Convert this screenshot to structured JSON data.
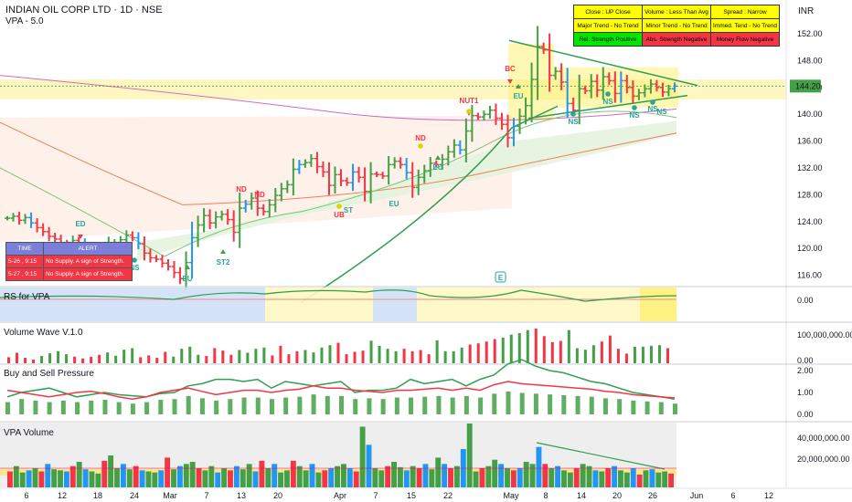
{
  "header": {
    "title": "INDIAN OIL CORP LTD · 1D · NSE",
    "subtitle": "VPA - 5.0",
    "currency": "INR"
  },
  "status_table": [
    [
      {
        "text": "Close : UP Close",
        "bg": "#ffff00"
      },
      {
        "text": "Volume : Less Than Avg",
        "bg": "#ffff00"
      },
      {
        "text": "Spread : Narrow",
        "bg": "#ffff00"
      }
    ],
    [
      {
        "text": "Major Trend - No Trend",
        "bg": "#ffff00"
      },
      {
        "text": "Minor Trend - No Trend",
        "bg": "#ffff00"
      },
      {
        "text": "Immed. Tend - No Trend",
        "bg": "#ffff00"
      }
    ],
    [
      {
        "text": "Rel. Strength Positive",
        "bg": "#00e600"
      },
      {
        "text": "Abs. Strength Negative",
        "bg": "#f23645"
      },
      {
        "text": "Money Flow Negative",
        "bg": "#f23645"
      }
    ]
  ],
  "alert_table": {
    "headers": [
      "TIME",
      "ALERT"
    ],
    "rows": [
      [
        "5-26 , 9:15",
        "No Supply. A sign of Strength."
      ],
      [
        "5-27 , 9:15",
        "No Supply. A sign of Strength."
      ]
    ]
  },
  "panes": {
    "rs": "RS for VPA",
    "volume_wave": "Volume Wave V.1.0",
    "pressure": "Buy and Sell Pressure",
    "vpa_volume": "VPA Volume"
  },
  "price_axis": {
    "ticks": [
      "152.00",
      "148.00",
      "144.00",
      "140.00",
      "136.00",
      "132.00",
      "128.00",
      "124.00",
      "120.00",
      "116.00"
    ],
    "last_price": "144.20"
  },
  "rs_axis": [
    "0.00"
  ],
  "vw_axis": [
    "100,000,000.00",
    "0.00"
  ],
  "bsp_axis": [
    "2.00",
    "1.00",
    "0.00"
  ],
  "vpa_axis": [
    "40,000,000.00",
    "20,000,000.00"
  ],
  "x_axis": [
    "6",
    "12",
    "18",
    "24",
    "Mar",
    "7",
    "13",
    "20",
    "Apr",
    "7",
    "15",
    "22",
    "May",
    "8",
    "14",
    "20",
    "26",
    "Jun",
    "6",
    "12"
  ],
  "annotations": [
    {
      "text": "ED",
      "color": "#26a69a"
    },
    {
      "text": "NS",
      "color": "#26a69a"
    },
    {
      "text": "EU",
      "color": "#26a69a"
    },
    {
      "text": "ST2",
      "color": "#26a69a"
    },
    {
      "text": "ND",
      "color": "#f23645"
    },
    {
      "text": "ND",
      "color": "#f23645"
    },
    {
      "text": "ST",
      "color": "#26a69a"
    },
    {
      "text": "UB",
      "color": "#f23645"
    },
    {
      "text": "EU",
      "color": "#26a69a"
    },
    {
      "text": "ND",
      "color": "#f23645"
    },
    {
      "text": "EU",
      "color": "#26a69a"
    },
    {
      "text": "NUT1",
      "color": "#f23645"
    },
    {
      "text": "BC",
      "color": "#f23645"
    },
    {
      "text": "EU",
      "color": "#26a69a"
    },
    {
      "text": "NS",
      "color": "#26a69a"
    },
    {
      "text": "NS",
      "color": "#26a69a"
    },
    {
      "text": "NS",
      "color": "#26a69a"
    },
    {
      "text": "NS",
      "color": "#26a69a"
    },
    {
      "text": "NS",
      "color": "#26a69a"
    }
  ],
  "earnings_marker": "E",
  "chart_data": {
    "type": "bar",
    "title": "INDIAN OIL CORP LTD · 1D · NSE",
    "ylim": [
      113.5,
      154
    ],
    "close": [
      124.5,
      124.8,
      124.2,
      124.6,
      123.8,
      123.1,
      122.5,
      121.8,
      121.4,
      120.8,
      120.5,
      121.2,
      120.8,
      120.1,
      119.9,
      119.4,
      119.1,
      120.6,
      120.9,
      121.3,
      122.0,
      121.6,
      120.7,
      119.3,
      118.6,
      118.4,
      117.8,
      117.3,
      116.4,
      115.5,
      117.9,
      121.6,
      123.5,
      124.9,
      123.8,
      124.7,
      125.1,
      124.3,
      122.4,
      126.0,
      126.6,
      127.5,
      126.0,
      125.5,
      126.5,
      127.9,
      128.9,
      129.5,
      131.8,
      132.5,
      132.8,
      133.4,
      132.2,
      131.4,
      129.4,
      131.0,
      130.1,
      129.8,
      131.4,
      130.6,
      128.5,
      131.1,
      131.0,
      130.8,
      132.5,
      133.0,
      132.5,
      131.3,
      129.1,
      130.6,
      131.6,
      132.7,
      132.5,
      133.3,
      134.4,
      135.4,
      134.7,
      137.5,
      139.8,
      139.6,
      140.0,
      140.6,
      139.4,
      138.5,
      136.5,
      138.2,
      139.7,
      141.3,
      145.2,
      150.1,
      149.6,
      145.8,
      146.4,
      144.8,
      141.6,
      140.6,
      143.8,
      143.5,
      144.9,
      143.6,
      145.6,
      145.0,
      143.1,
      145.0,
      144.0,
      142.7,
      143.2,
      143.8,
      144.5,
      144.0,
      143.3,
      143.8,
      144.2
    ],
    "volume_wave": [
      20,
      35,
      18,
      12,
      24,
      33,
      40,
      30,
      22,
      16,
      21,
      28,
      36,
      25,
      45,
      50,
      20,
      26,
      18,
      38,
      22,
      48,
      55,
      28,
      24,
      50,
      42,
      28,
      44,
      35,
      48,
      52,
      26,
      58,
      30,
      40,
      44,
      36,
      52,
      60,
      68,
      30,
      38,
      42,
      75,
      58,
      48,
      40,
      48,
      40,
      44,
      30,
      76,
      40,
      40,
      52,
      62,
      66,
      72,
      80,
      85,
      95,
      100,
      110,
      115,
      90,
      70,
      74,
      110,
      50,
      45,
      60,
      72,
      92,
      48,
      32,
      55,
      55,
      58,
      60,
      50
    ],
    "buy_pressure": [
      0.8,
      1.0,
      1.1,
      1.2,
      1.0,
      0.8,
      0.9,
      1.0,
      0.9,
      0.85,
      0.8,
      0.95,
      1.0,
      1.3,
      1.4,
      1.6,
      1.6,
      1.5,
      1.6,
      1.2,
      1.5,
      1.4,
      1.3,
      1.4,
      1.5,
      1.0,
      1.1,
      1.1,
      1.2,
      1.6,
      1.4,
      1.5,
      1.6,
      1.3,
      1.6,
      1.8,
      2.3,
      2.5,
      2.2,
      2.0,
      1.9,
      1.7,
      1.5,
      1.4,
      1.2,
      1.0,
      0.9,
      0.8,
      0.7
    ],
    "sell_pressure": [
      1.1,
      1.0,
      0.9,
      0.8,
      0.9,
      1.0,
      1.05,
      0.95,
      0.8,
      0.7,
      0.8,
      1.0,
      1.1,
      1.2,
      1.05,
      0.9,
      1.0,
      1.1,
      1.1,
      1.0,
      1.1,
      1.15,
      1.3,
      1.2,
      1.2,
      1.1,
      1.05,
      1.0,
      1.1,
      1.1,
      1.15,
      1.2,
      1.1,
      1.2,
      1.1,
      1.35,
      1.5,
      1.4,
      1.35,
      1.3,
      1.25,
      1.2,
      1.15,
      1.05,
      1.0,
      0.9,
      0.85,
      0.8,
      0.75
    ]
  },
  "colors": {
    "up": "#43a047",
    "down": "#f23645",
    "neutral": "#2196f3",
    "yellow_band": "#fff7c2",
    "ma_green": "#2e9e4f",
    "ma_pink": "#d56ab9",
    "ma_orange": "#ef7f5a"
  }
}
